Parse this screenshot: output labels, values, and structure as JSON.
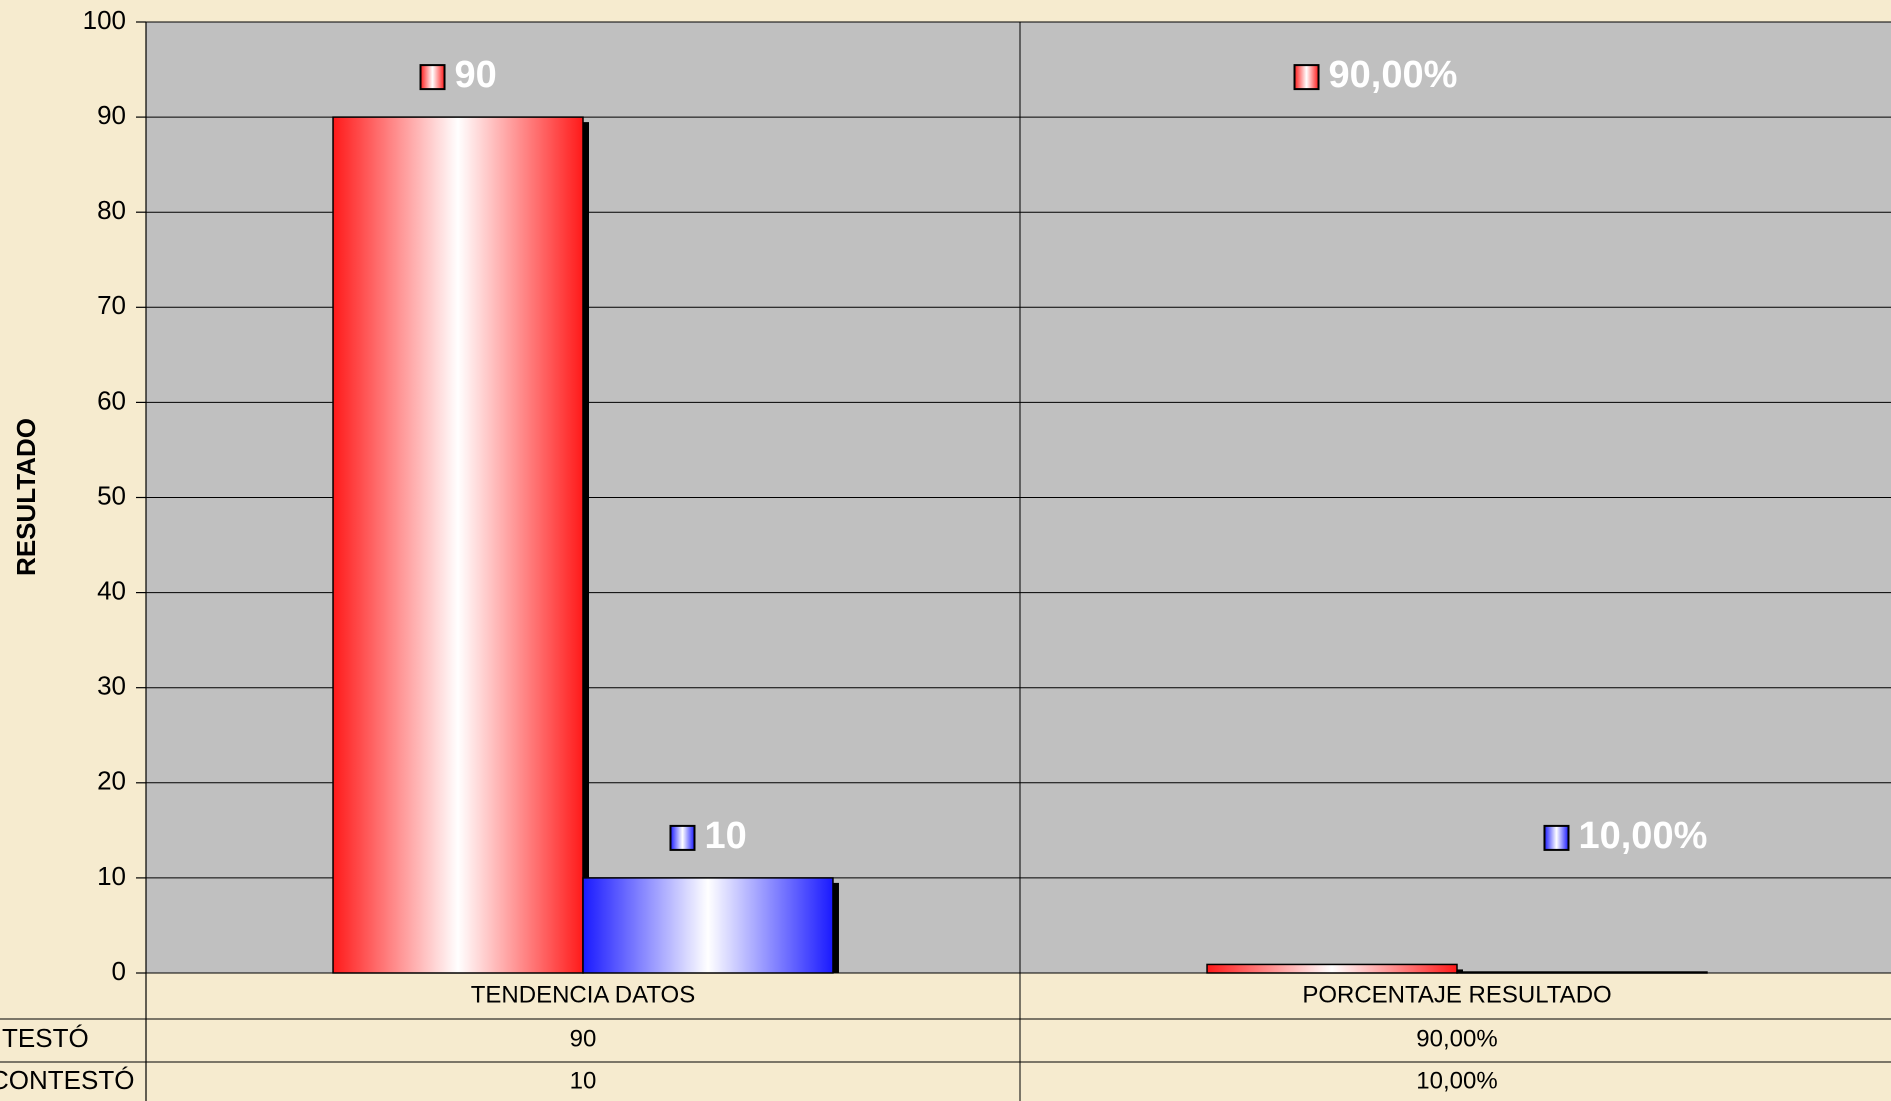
{
  "chart_data": {
    "type": "bar",
    "y_label": "RESULTADO",
    "categories": [
      "TENDENCIA DATOS",
      "PORCENTAJE RESULTADO"
    ],
    "series": [
      {
        "name": "TESTÓ",
        "color": "#ff1a1a",
        "values": [
          90,
          0.9
        ],
        "value_labels": [
          "90",
          "90,00%"
        ]
      },
      {
        "name": "CONTESTÓ",
        "color": "#1a1aff",
        "values": [
          10,
          0.1
        ],
        "value_labels": [
          "10",
          "10,00%"
        ]
      }
    ],
    "ylim": [
      0,
      100
    ],
    "yticks": [
      0,
      10,
      20,
      30,
      40,
      50,
      60,
      70,
      80,
      90,
      100
    ],
    "grid": true
  }
}
